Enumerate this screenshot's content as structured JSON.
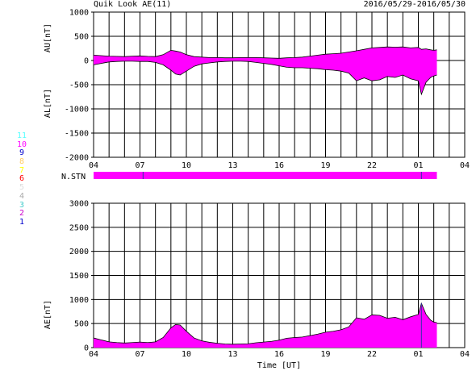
{
  "header": {
    "title": "Quik Look AE(11)",
    "date_range": "2016/05/29-2016/05/30"
  },
  "station_numbers": [
    {
      "label": "11",
      "color": "#55ffff"
    },
    {
      "label": "10",
      "color": "#ff00ff"
    },
    {
      "label": "9",
      "color": "#0000cc"
    },
    {
      "label": "8",
      "color": "#ffcc66"
    },
    {
      "label": "7",
      "color": "#ffff00"
    },
    {
      "label": "6",
      "color": "#ff0000"
    },
    {
      "label": "5",
      "color": "#dddddd"
    },
    {
      "label": "4",
      "color": "#aaaaaa"
    },
    {
      "label": "3",
      "color": "#44cccc"
    },
    {
      "label": "2",
      "color": "#cc00cc"
    },
    {
      "label": "1",
      "color": "#0000cc"
    }
  ],
  "colors": {
    "fill": "#ff00ff",
    "outline": "#000000",
    "grid": "#000000",
    "station_bar_line": "#3333aa"
  },
  "chart_data": [
    {
      "type": "area",
      "ylabel_top": "AU[nT]",
      "ylabel_bottom": "AL[nT]",
      "ylim": [
        -2000,
        1000
      ],
      "y_ticks": [
        1000,
        500,
        0,
        -500,
        -1000,
        -1500,
        -2000
      ],
      "xlim": [
        4,
        28
      ],
      "x_ticks": [
        "04",
        "07",
        "10",
        "13",
        "16",
        "19",
        "22",
        "01",
        "04"
      ],
      "grid": true,
      "series": [
        {
          "x": [
            4,
            4.5,
            5,
            5.5,
            6,
            6.5,
            7,
            7.5,
            8,
            8.5,
            9,
            9.3,
            9.6,
            10,
            10.5,
            11,
            11.5,
            12,
            12.5,
            13,
            13.5,
            14,
            14.5,
            15,
            15.5,
            16,
            16.5,
            17,
            17.5,
            18,
            18.5,
            19,
            19.5,
            20,
            20.5,
            21,
            21.5,
            22,
            22.5,
            23,
            23.5,
            24,
            24.5,
            25,
            25.2,
            25.5,
            25.8,
            26,
            26.2
          ],
          "values": [
            110,
            100,
            90,
            85,
            80,
            90,
            95,
            85,
            80,
            120,
            210,
            195,
            175,
            120,
            80,
            70,
            60,
            60,
            55,
            55,
            60,
            60,
            60,
            55,
            50,
            45,
            55,
            60,
            70,
            90,
            110,
            130,
            140,
            150,
            175,
            200,
            230,
            260,
            270,
            280,
            275,
            280,
            260,
            270,
            230,
            240,
            220,
            210,
            220
          ]
        },
        {
          "x": [
            4,
            4.5,
            5,
            5.5,
            6,
            6.5,
            7,
            7.5,
            8,
            8.5,
            9,
            9.3,
            9.6,
            10,
            10.5,
            11,
            11.5,
            12,
            12.5,
            13,
            13.5,
            14,
            14.5,
            15,
            15.5,
            16,
            16.5,
            17,
            17.5,
            18,
            18.5,
            19,
            19.5,
            20,
            20.5,
            21,
            21.5,
            22,
            22.5,
            23,
            23.5,
            24,
            24.5,
            25,
            25.2,
            25.5,
            25.8,
            26,
            26.2
          ],
          "values": [
            -90,
            -60,
            -30,
            -20,
            -15,
            -15,
            -20,
            -20,
            -40,
            -90,
            -200,
            -280,
            -300,
            -220,
            -120,
            -70,
            -50,
            -30,
            -20,
            -15,
            -15,
            -20,
            -40,
            -60,
            -80,
            -110,
            -140,
            -150,
            -150,
            -160,
            -170,
            -190,
            -200,
            -220,
            -260,
            -420,
            -360,
            -420,
            -400,
            -330,
            -350,
            -300,
            -380,
            -420,
            -700,
            -450,
            -350,
            -320,
            -300
          ]
        }
      ]
    },
    {
      "type": "area",
      "ylabel": "AE[nT]",
      "xlabel": "Time [UT]",
      "ylim": [
        0,
        3000
      ],
      "y_ticks": [
        3000,
        2500,
        2000,
        1500,
        1000,
        500,
        0
      ],
      "xlim": [
        4,
        28
      ],
      "x_ticks": [
        "04",
        "07",
        "10",
        "13",
        "16",
        "19",
        "22",
        "01",
        "04"
      ],
      "grid": true,
      "series": [
        {
          "x": [
            4,
            4.5,
            5,
            5.5,
            6,
            6.5,
            7,
            7.5,
            8,
            8.5,
            9,
            9.3,
            9.6,
            10,
            10.5,
            11,
            11.5,
            12,
            12.5,
            13,
            13.5,
            14,
            14.5,
            15,
            15.5,
            16,
            16.5,
            17,
            17.5,
            18,
            18.5,
            19,
            19.5,
            20,
            20.5,
            21,
            21.5,
            22,
            22.5,
            23,
            23.5,
            24,
            24.5,
            25,
            25.2,
            25.5,
            25.8,
            26,
            26.2
          ],
          "values": [
            200,
            160,
            120,
            105,
            95,
            105,
            115,
            105,
            120,
            210,
            410,
            480,
            470,
            340,
            200,
            140,
            110,
            90,
            75,
            70,
            75,
            80,
            100,
            115,
            130,
            155,
            195,
            210,
            220,
            250,
            280,
            320,
            340,
            370,
            430,
            620,
            590,
            680,
            670,
            610,
            630,
            580,
            640,
            690,
            920,
            690,
            570,
            530,
            520
          ]
        }
      ]
    },
    {
      "type": "bar",
      "label": "N.STN",
      "xlim": [
        4,
        28
      ],
      "x_start": 4,
      "x_end": 26.2,
      "markers_x": [
        7.2,
        25.2
      ],
      "values": [
        10
      ]
    }
  ]
}
